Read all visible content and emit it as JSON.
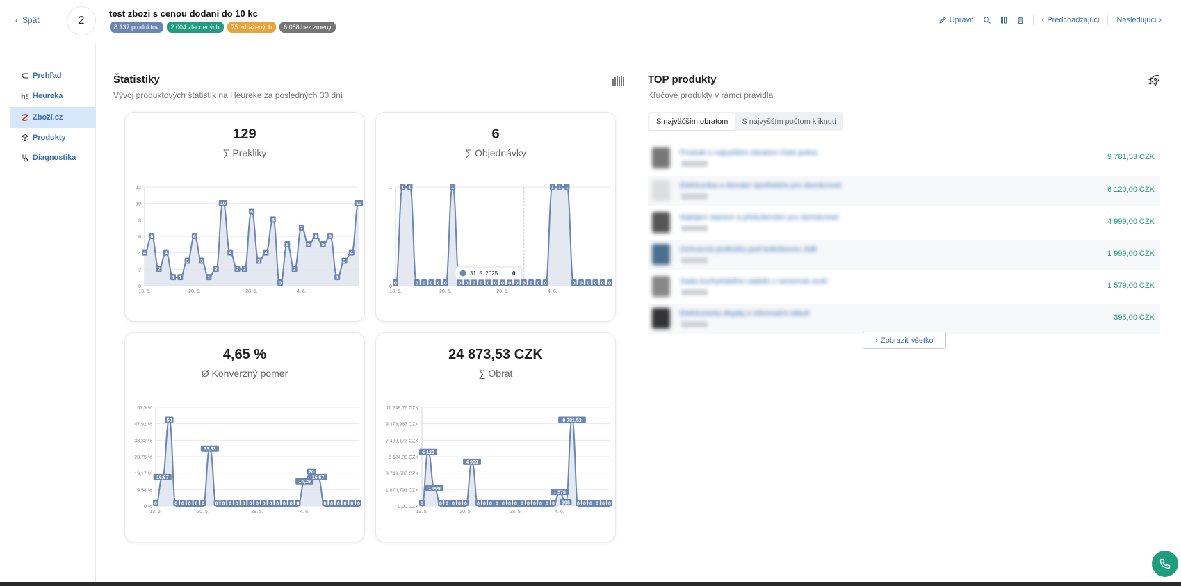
{
  "header": {
    "back_label": "Späť",
    "rule_number": "2",
    "title": "test zbozi s cenou dodani do 10 kc",
    "badges": [
      {
        "text": "8 137 produktov",
        "color": "#6b86b3"
      },
      {
        "text": "2 004 zlacnených",
        "color": "#1f9d7f"
      },
      {
        "text": "75 zdražených",
        "color": "#e8a43a"
      },
      {
        "text": "6 058 bez zmeny",
        "color": "#767676"
      }
    ],
    "edit_label": "Upraviť",
    "prev_label": "Predchádzajúci",
    "next_label": "Nasledujúci"
  },
  "sidebar": {
    "items": [
      {
        "label": "Prehľad",
        "icon": "tag-icon"
      },
      {
        "label": "Heureka",
        "icon": "heureka-icon"
      },
      {
        "label": "Zboží.cz",
        "icon": "zbozi-icon",
        "active": true
      },
      {
        "label": "Produkty",
        "icon": "box-icon"
      },
      {
        "label": "Diagnostika",
        "icon": "stethoscope-icon"
      }
    ]
  },
  "stats": {
    "title": "Štatistiky",
    "subtitle": "Vývoj produktových štatistík na Heureke za posledných 30 dní"
  },
  "cards": [
    {
      "value": "129",
      "label": "∑ Prekliky"
    },
    {
      "value": "6",
      "label": "∑ Objednávky"
    },
    {
      "value": "4,65 %",
      "label": "Ø Konverzný pomer"
    },
    {
      "value": "24 873,53 CZK",
      "label": "∑ Obrat"
    }
  ],
  "chart_data": [
    {
      "type": "area",
      "x_ticks": [
        "13. 5.",
        "20. 5.",
        "28. 5.",
        "4. 6."
      ],
      "y_ticks": [
        "0",
        "2",
        "4",
        "6",
        "8",
        "10",
        "12"
      ],
      "ylim": [
        0,
        12
      ],
      "values": [
        4,
        6,
        2,
        4,
        1,
        1,
        3,
        6,
        3,
        1,
        2,
        10,
        4,
        2,
        2,
        9,
        3,
        4,
        8,
        0,
        5,
        2,
        7,
        5,
        6,
        5,
        6,
        1,
        3,
        4,
        10
      ],
      "labels": [
        "4",
        "6",
        "2",
        "4",
        "1",
        "1",
        "3",
        "6",
        "3",
        "1",
        "2",
        "10",
        "4",
        "2",
        "2",
        "9",
        "3",
        "4",
        "8",
        "0",
        "5",
        "2",
        "7",
        "5",
        "6",
        "5",
        "6",
        "1",
        "3",
        "4",
        "10"
      ]
    },
    {
      "type": "area",
      "x_ticks": [
        "13. 5.",
        "20. 5.",
        "28. 5.",
        "4. 6."
      ],
      "y_ticks": [
        "0",
        "1"
      ],
      "ylim": [
        0,
        1
      ],
      "values": [
        0,
        1,
        1,
        0,
        0,
        0,
        0,
        0,
        1,
        0,
        0,
        0,
        0,
        0,
        0,
        0,
        0,
        0,
        0,
        0,
        0,
        0,
        1,
        1,
        1,
        0,
        0,
        0,
        0,
        0,
        0
      ],
      "labels": [
        "0",
        "1",
        "1",
        "0",
        "0",
        "0",
        "0",
        "0",
        "1",
        "0",
        "0",
        "0",
        "0",
        "0",
        "0",
        "0",
        "0",
        "0",
        "0",
        "0",
        "0",
        "0",
        "1",
        "1",
        "1",
        "0",
        "0",
        "0",
        "0",
        "0",
        "0"
      ],
      "tooltip": {
        "date": "31. 5. 2025",
        "value": "0"
      }
    },
    {
      "type": "area",
      "x_ticks": [
        "13. 5.",
        "20. 5.",
        "28. 5.",
        "4. 6."
      ],
      "y_ticks": [
        "0 %",
        "9,58 %",
        "19,17 %",
        "28,75 %",
        "38,33 %",
        "47,92 %",
        "57,5 %"
      ],
      "ylim": [
        0,
        57.5
      ],
      "values": [
        0,
        16.67,
        50,
        0,
        0,
        0,
        0,
        0,
        33.33,
        0,
        0,
        0,
        0,
        0,
        0,
        0,
        0,
        0,
        0,
        0,
        0,
        0,
        14.29,
        20,
        16.67,
        0,
        0,
        0,
        0,
        0,
        0
      ],
      "labels": [
        "0",
        "16,67",
        "50",
        "0",
        "0",
        "0",
        "0",
        "0",
        "33,33",
        "0",
        "0",
        "0",
        "0",
        "0",
        "0",
        "0",
        "0",
        "0",
        "0",
        "0",
        "0",
        "0",
        "14,29",
        "20",
        "16,67",
        "0",
        "0",
        "0",
        "0",
        "0",
        "0"
      ]
    },
    {
      "type": "area",
      "x_ticks": [
        "13. 5.",
        "20. 5.",
        "28. 5.",
        "4. 6."
      ],
      "y_ticks": [
        "0,00 CZK",
        "1 874,793 CZK",
        "3 749,587 CZK",
        "5 624,38 CZK",
        "7 499,173 CZK",
        "9 373,967 CZK",
        "11 248,76 CZK"
      ],
      "ylim": [
        0,
        11248.76
      ],
      "values": [
        0,
        6120,
        1999,
        0,
        0,
        0,
        0,
        0,
        4999,
        0,
        0,
        0,
        0,
        0,
        0,
        0,
        0,
        0,
        0,
        0,
        0,
        0,
        1579,
        395,
        9781.53,
        0,
        0,
        0,
        0,
        0,
        0
      ],
      "labels": [
        "0",
        "6 120",
        "1 999",
        "0",
        "0",
        "0",
        "0",
        "0",
        "4 999",
        "0",
        "0",
        "0",
        "0",
        "0",
        "0",
        "0",
        "0",
        "0",
        "0",
        "0",
        "0",
        "0",
        "1 579",
        "395",
        "9 781,53",
        "0",
        "0",
        "0",
        "0",
        "0",
        "0"
      ]
    }
  ],
  "top_products": {
    "title": "TOP produkty",
    "subtitle": "Kľúčové produkty v rámci pravidla",
    "tabs": [
      "S najväčším obratom",
      "S najvyšším počtom kliknutí"
    ],
    "items": [
      {
        "name": "Produkt s najvyšším obratom číslo jedna",
        "value": "9 781,53 CZK"
      },
      {
        "name": "Elektronika a domácí spotřebiče pro domácnost",
        "value": "6 120,00 CZK"
      },
      {
        "name": "Nabíjecí stanice a příslušenství pro domácnost",
        "value": "4 999,00 CZK"
      },
      {
        "name": "Ochranná podložka pod kolečkovou židli",
        "value": "1 999,00 CZK"
      },
      {
        "name": "Sada kuchyňského nádobí z nerezové oceli",
        "value": "1 579,00 CZK"
      },
      {
        "name": "Elektronický displej s informační tabulí",
        "value": "395,00 CZK"
      }
    ],
    "show_all_label": "Zobraziť všetko"
  },
  "colors": {
    "accent": "#3a6fb0",
    "chart_line": "#6b86b3",
    "chart_fill": "#dde4ee",
    "value_green": "#1f9d7f"
  }
}
